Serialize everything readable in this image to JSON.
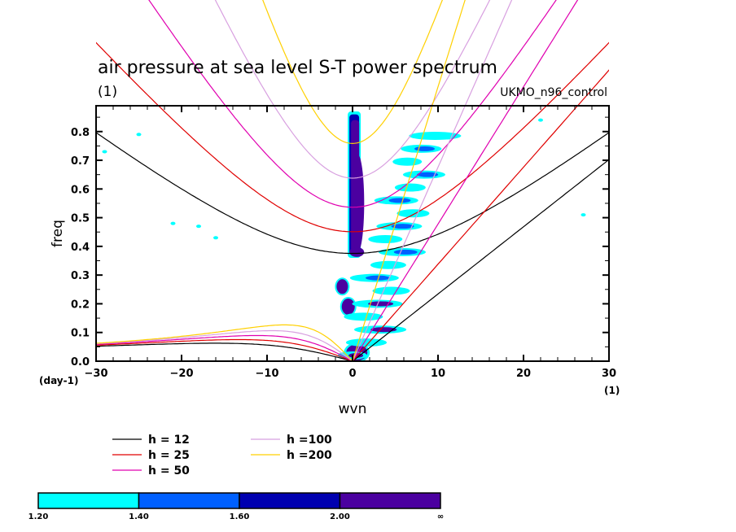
{
  "chart_data": {
    "type": "contour",
    "title": "air pressure at sea level S-T power spectrum",
    "subtitle_left": "(1)",
    "subtitle_right": "UKMO_n96_control",
    "xlabel": "wvn",
    "ylabel": "freq",
    "x_unit": "(1)",
    "y_unit": "(day-1)",
    "xlim": [
      -30,
      30
    ],
    "ylim": [
      0.0,
      0.89
    ],
    "x_ticks": [
      -30,
      -20,
      -10,
      0,
      10,
      20,
      30
    ],
    "x_tick_labels": [
      "-30",
      "-20",
      "-10",
      "0",
      "10",
      "20",
      "30"
    ],
    "y_ticks": [
      0.0,
      0.1,
      0.2,
      0.3,
      0.4,
      0.5,
      0.6,
      0.7,
      0.8
    ],
    "y_tick_labels": [
      "0.0",
      "0.1",
      "0.2",
      "0.3",
      "0.4",
      "0.5",
      "0.6",
      "0.7",
      "0.8"
    ],
    "grid": false,
    "dispersion_curves": {
      "equivalent_depths_m": [
        12,
        25,
        50,
        100,
        200
      ],
      "legend": [
        {
          "label": "h = 12",
          "color": "#000000"
        },
        {
          "label": "h = 25",
          "color": "#e00000"
        },
        {
          "label": "h = 50",
          "color": "#e000b0"
        },
        {
          "label": "h =100",
          "color": "#d8a0e0"
        },
        {
          "label": "h =200",
          "color": "#ffd000"
        }
      ],
      "families": [
        "kelvin",
        "rossby_n1",
        "inertia_gravity_n1"
      ]
    },
    "colorbar": {
      "levels": [
        "1.20",
        "1.40",
        "1.60",
        "2.00",
        "∞"
      ],
      "colors": [
        "#00ffff",
        "#0060ff",
        "#0000b0",
        "#4b00a0"
      ]
    },
    "features": [
      {
        "name": "zero-wavenumber ridge",
        "x": [
          -0.5,
          0.5
        ],
        "y": [
          0.0,
          0.87
        ],
        "level": "2.00+"
      },
      {
        "name": "kelvin-band signal",
        "x": [
          0,
          10
        ],
        "y": [
          0.0,
          0.85
        ],
        "level": "1.20-2.00+"
      },
      {
        "name": "isolated peaks",
        "x": [
          -1.5,
          -1.0
        ],
        "y": [
          0.18,
          0.28
        ],
        "level": "2.00+"
      }
    ]
  }
}
